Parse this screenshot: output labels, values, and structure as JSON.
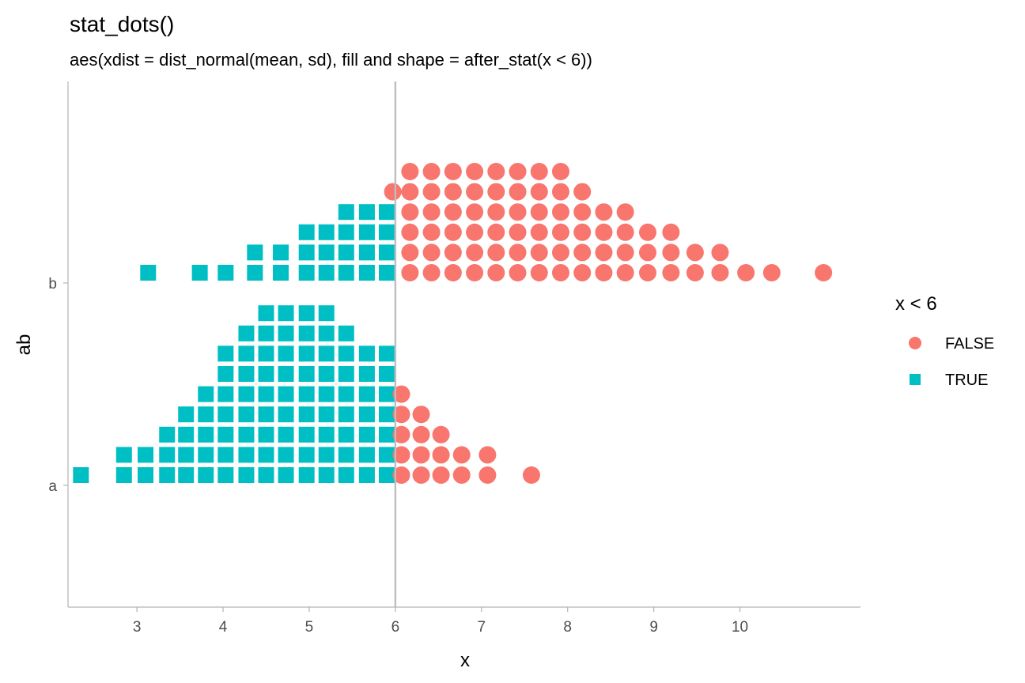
{
  "chart_data": {
    "type": "scatter",
    "title": "stat_dots()",
    "subtitle": "aes(xdist = dist_normal(mean, sd), fill and shape = after_stat(x < 6))",
    "xlabel": "x",
    "ylabel": "ab",
    "xlim": [
      2.2,
      11.4
    ],
    "x_ticks": [
      3,
      4,
      5,
      6,
      7,
      8,
      9,
      10
    ],
    "x_tick_labels": [
      "3",
      "4",
      "5",
      "6",
      "7",
      "8",
      "9",
      "10"
    ],
    "categories": [
      "a",
      "b"
    ],
    "reference_line_x": 6,
    "grid": false,
    "legend": {
      "title": "x < 6",
      "position": "right",
      "entries": [
        {
          "label": "FALSE",
          "shape": "circle",
          "color": "#F8766D"
        },
        {
          "label": "TRUE",
          "shape": "square",
          "color": "#00BFC4"
        }
      ]
    },
    "colors": {
      "false": "#F8766D",
      "true": "#00BFC4",
      "reference_line": "#bebebe",
      "axis": "#b3b3b3"
    },
    "stacks": {
      "a": [
        {
          "x": 2.35,
          "n": 1
        },
        {
          "x": 2.85,
          "n": 2
        },
        {
          "x": 3.1,
          "n": 2
        },
        {
          "x": 3.35,
          "n": 3
        },
        {
          "x": 3.57,
          "n": 4
        },
        {
          "x": 3.8,
          "n": 5
        },
        {
          "x": 4.03,
          "n": 7
        },
        {
          "x": 4.27,
          "n": 8
        },
        {
          "x": 4.5,
          "n": 9
        },
        {
          "x": 4.73,
          "n": 9
        },
        {
          "x": 4.97,
          "n": 9
        },
        {
          "x": 5.2,
          "n": 9
        },
        {
          "x": 5.43,
          "n": 8
        },
        {
          "x": 5.67,
          "n": 7
        },
        {
          "x": 5.9,
          "n": 7
        },
        {
          "x": 6.07,
          "n": 5,
          "flag": false
        },
        {
          "x": 6.3,
          "n": 4,
          "flag": false
        },
        {
          "x": 6.53,
          "n": 3,
          "flag": false
        },
        {
          "x": 6.77,
          "n": 2,
          "flag": false
        },
        {
          "x": 7.07,
          "n": 2,
          "flag": false
        },
        {
          "x": 7.58,
          "n": 1,
          "flag": false
        }
      ],
      "b": [
        {
          "x": 3.13,
          "n": 1
        },
        {
          "x": 3.73,
          "n": 1
        },
        {
          "x": 4.03,
          "n": 1
        },
        {
          "x": 4.37,
          "n": 2
        },
        {
          "x": 4.67,
          "n": 2
        },
        {
          "x": 4.97,
          "n": 3
        },
        {
          "x": 5.2,
          "n": 3
        },
        {
          "x": 5.43,
          "n": 4
        },
        {
          "x": 5.67,
          "n": 4
        },
        {
          "x": 5.9,
          "n": 4
        },
        {
          "x": 5.97,
          "n": 1,
          "flag": false,
          "offset": 4
        },
        {
          "x": 6.17,
          "n": 6,
          "flag": false
        },
        {
          "x": 6.42,
          "n": 6,
          "flag": false
        },
        {
          "x": 6.67,
          "n": 6,
          "flag": false
        },
        {
          "x": 6.92,
          "n": 6,
          "flag": false
        },
        {
          "x": 7.17,
          "n": 6,
          "flag": false
        },
        {
          "x": 7.42,
          "n": 6,
          "flag": false
        },
        {
          "x": 7.67,
          "n": 6,
          "flag": false
        },
        {
          "x": 7.92,
          "n": 6,
          "flag": false
        },
        {
          "x": 8.17,
          "n": 5,
          "flag": false
        },
        {
          "x": 8.42,
          "n": 4,
          "flag": false
        },
        {
          "x": 8.67,
          "n": 4,
          "flag": false
        },
        {
          "x": 8.93,
          "n": 3,
          "flag": false
        },
        {
          "x": 9.2,
          "n": 3,
          "flag": false
        },
        {
          "x": 9.48,
          "n": 2,
          "flag": false
        },
        {
          "x": 9.77,
          "n": 2,
          "flag": false
        },
        {
          "x": 10.07,
          "n": 1,
          "flag": false
        },
        {
          "x": 10.37,
          "n": 1,
          "flag": false
        },
        {
          "x": 10.97,
          "n": 1,
          "flag": false
        }
      ]
    }
  }
}
